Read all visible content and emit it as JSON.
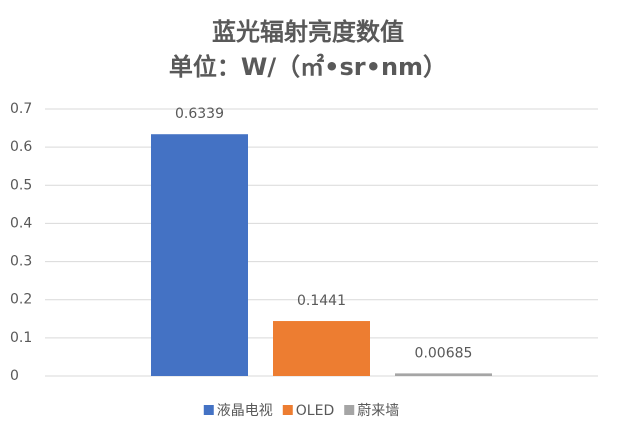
{
  "chart_data": {
    "type": "bar",
    "title": "蓝光辐射亮度数值",
    "subtitle": "单位：W/（㎡•sr•nm）",
    "categories": [
      null
    ],
    "series": [
      {
        "name": "液晶电视",
        "color": "#4472c4",
        "values": [
          0.6339
        ]
      },
      {
        "name": "OLED",
        "color": "#ed7d31",
        "values": [
          0.1441
        ]
      },
      {
        "name": "蔚来墙",
        "color": "#a5a5a5",
        "values": [
          0.00685
        ]
      }
    ],
    "ylim": [
      0,
      0.7
    ],
    "yticks": [
      0,
      0.1,
      0.2,
      0.3,
      0.4,
      0.5,
      0.6,
      0.7
    ],
    "grid": true,
    "legend": "bottom"
  }
}
